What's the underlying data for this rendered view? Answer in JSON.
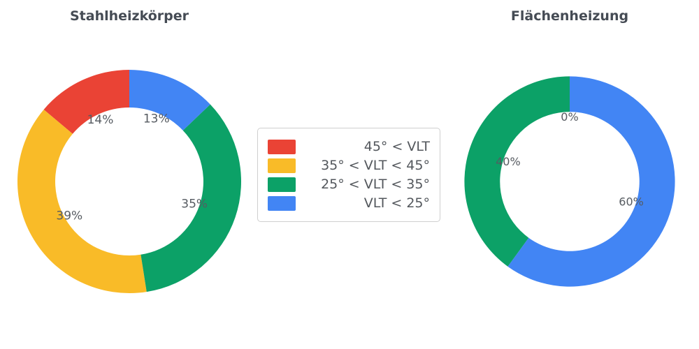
{
  "chart_data": [
    {
      "type": "pie",
      "subtype": "donut",
      "title": "Stahlheizkörper",
      "labels": [
        "45° < VLT",
        "35° < VLT < 45°",
        "25° < VLT < 35°",
        "VLT < 25°"
      ],
      "values": [
        14,
        39,
        35,
        13
      ],
      "data_labels": [
        "14%",
        "39%",
        "35%",
        "13%"
      ],
      "colors": [
        "#EA4335",
        "#F9BB28",
        "#0CA167",
        "#4285F4"
      ],
      "hole": 0.66,
      "start_angle": 90,
      "direction": "counterclockwise"
    },
    {
      "type": "pie",
      "subtype": "donut",
      "title": "Flächenheizung",
      "labels": [
        "45° < VLT",
        "35° < VLT < 45°",
        "25° < VLT < 35°",
        "VLT < 25°"
      ],
      "values": [
        0,
        0,
        40,
        60
      ],
      "data_labels": [
        "0%",
        "0%",
        "40%",
        "60%"
      ],
      "colors": [
        "#EA4335",
        "#F9BB28",
        "#0CA167",
        "#4285F4"
      ],
      "hole": 0.66,
      "start_angle": 90,
      "direction": "counterclockwise"
    }
  ],
  "legend": {
    "position": "center",
    "items": [
      {
        "label": "45° < VLT",
        "color": "#EA4335"
      },
      {
        "label": "35° < VLT < 45°",
        "color": "#F9BB28"
      },
      {
        "label": "25° < VLT < 35°",
        "color": "#0CA167"
      },
      {
        "label": "VLT < 25°",
        "color": "#4285F4"
      }
    ]
  }
}
